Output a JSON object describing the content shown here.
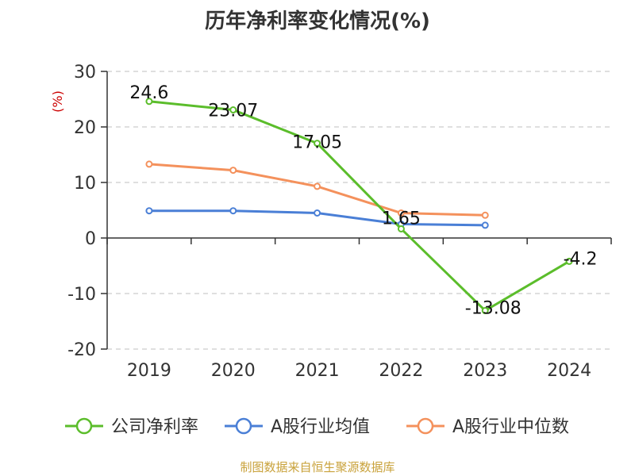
{
  "chart_data": {
    "type": "line",
    "title": "历年净利率变化情况(%)",
    "unit_label": "(%)",
    "x": [
      "2019",
      "2020",
      "2021",
      "2022",
      "2023",
      "2024"
    ],
    "ylim": [
      -20,
      30
    ],
    "yticks": [
      30,
      20,
      10,
      0,
      -10,
      -20
    ],
    "grid": true,
    "legend_position": "bottom",
    "series": [
      {
        "name": "公司净利率",
        "color": "#5bbd2b",
        "values": [
          24.6,
          23.07,
          17.05,
          1.65,
          -13.08,
          -4.2
        ],
        "labels": [
          "24.6",
          "23.07",
          "17.05",
          "1.65",
          "-13.08",
          "-4.2"
        ]
      },
      {
        "name": "A股行业均值",
        "color": "#4a7fd6",
        "values": [
          4.9,
          4.9,
          4.5,
          2.5,
          2.3,
          null
        ]
      },
      {
        "name": "A股行业中位数",
        "color": "#f4915c",
        "values": [
          13.3,
          12.2,
          9.3,
          4.5,
          4.1,
          null
        ]
      }
    ]
  },
  "source_note": "制图数据来自恒生聚源数据库"
}
